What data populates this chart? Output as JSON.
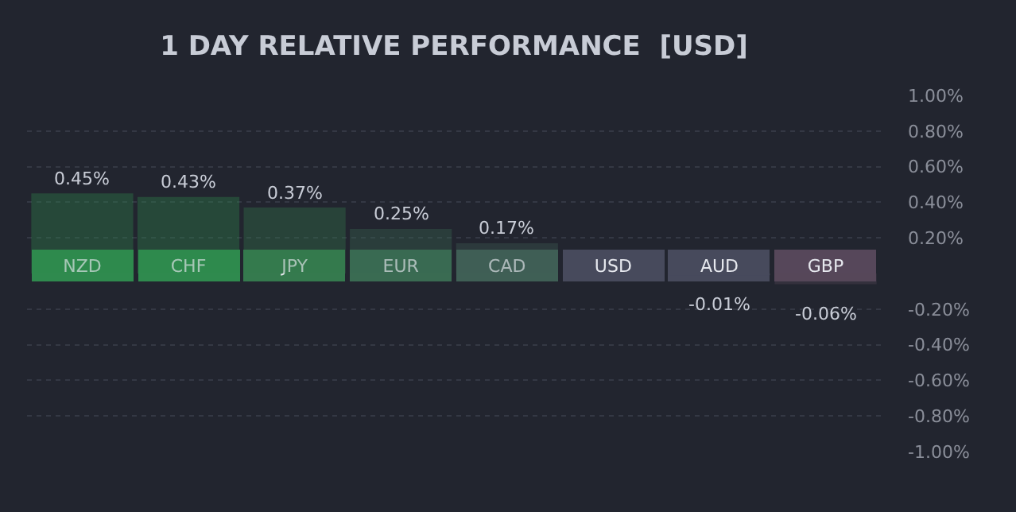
{
  "chart_data": {
    "type": "bar",
    "title": "1 DAY RELATIVE PERFORMANCE  [USD]",
    "categories": [
      "NZD",
      "CHF",
      "JPY",
      "EUR",
      "CAD",
      "USD",
      "AUD",
      "GBP"
    ],
    "values": [
      0.45,
      0.43,
      0.37,
      0.25,
      0.17,
      0,
      -0.01,
      -0.06
    ],
    "value_labels": [
      "0.45%",
      "0.43%",
      "0.37%",
      "0.25%",
      "0.17%",
      null,
      "-0.01%",
      "-0.06%"
    ],
    "colors": [
      "#2f8a4e",
      "#2f8a4e",
      "#357a4e",
      "#3a6b52",
      "#3f5f55",
      "#474a5c",
      "#474a5c",
      "#56475a"
    ],
    "ylim": [
      -1,
      1
    ],
    "yticks": [
      {
        "value": 1,
        "label": "1.00%"
      },
      {
        "value": 0.8,
        "label": "0.80%"
      },
      {
        "value": 0.6,
        "label": "0.60%"
      },
      {
        "value": 0.4,
        "label": "0.40%"
      },
      {
        "value": 0.2,
        "label": "0.20%"
      },
      {
        "value": -0.2,
        "label": "-0.20%"
      },
      {
        "value": -0.4,
        "label": "-0.40%"
      },
      {
        "value": -0.6,
        "label": "-0.60%"
      },
      {
        "value": -0.8,
        "label": "-0.80%"
      },
      {
        "value": -1,
        "label": "-1.00%"
      }
    ],
    "grid": "y"
  }
}
